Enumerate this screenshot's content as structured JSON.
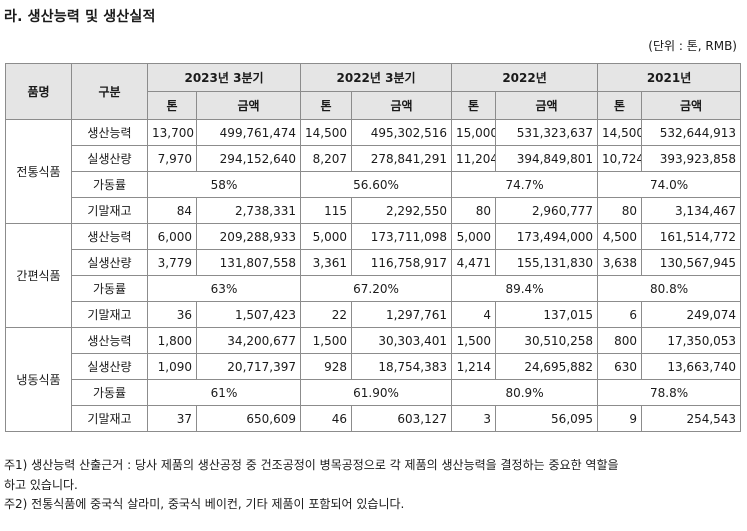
{
  "title": "라. 생산능력 및 생산실적",
  "unit": "(단위 : 톤, RMB)",
  "headers": {
    "product": "품명",
    "division": "구분",
    "periods": [
      "2023년 3분기",
      "2022년 3분기",
      "2022년",
      "2021년"
    ],
    "ton": "톤",
    "amount": "금액"
  },
  "categories": [
    {
      "name": "전통식품",
      "rows": [
        {
          "label": "생산능력",
          "values": [
            "13,700",
            "499,761,474",
            "14,500",
            "495,302,516",
            "15,000",
            "531,323,637",
            "14,500",
            "532,644,913"
          ]
        },
        {
          "label": "실생산량",
          "values": [
            "7,970",
            "294,152,640",
            "8,207",
            "278,841,291",
            "11,204",
            "394,849,801",
            "10,724",
            "393,923,858"
          ]
        },
        {
          "label": "가동률",
          "util": [
            "58%",
            "56.60%",
            "74.7%",
            "74.0%"
          ]
        },
        {
          "label": "기말재고",
          "values": [
            "84",
            "2,738,331",
            "115",
            "2,292,550",
            "80",
            "2,960,777",
            "80",
            "3,134,467"
          ]
        }
      ]
    },
    {
      "name": "간편식품",
      "rows": [
        {
          "label": "생산능력",
          "values": [
            "6,000",
            "209,288,933",
            "5,000",
            "173,711,098",
            "5,000",
            "173,494,000",
            "4,500",
            "161,514,772"
          ]
        },
        {
          "label": "실생산량",
          "values": [
            "3,779",
            "131,807,558",
            "3,361",
            "116,758,917",
            "4,471",
            "155,131,830",
            "3,638",
            "130,567,945"
          ]
        },
        {
          "label": "가동률",
          "util": [
            "63%",
            "67.20%",
            "89.4%",
            "80.8%"
          ]
        },
        {
          "label": "기말재고",
          "values": [
            "36",
            "1,507,423",
            "22",
            "1,297,761",
            "4",
            "137,015",
            "6",
            "249,074"
          ]
        }
      ]
    },
    {
      "name": "냉동식품",
      "rows": [
        {
          "label": "생산능력",
          "values": [
            "1,800",
            "34,200,677",
            "1,500",
            "30,303,401",
            "1,500",
            "30,510,258",
            "800",
            "17,350,053"
          ]
        },
        {
          "label": "실생산량",
          "values": [
            "1,090",
            "20,717,397",
            "928",
            "18,754,383",
            "1,214",
            "24,695,882",
            "630",
            "13,663,740"
          ]
        },
        {
          "label": "가동률",
          "util": [
            "61%",
            "61.90%",
            "80.9%",
            "78.8%"
          ]
        },
        {
          "label": "기말재고",
          "values": [
            "37",
            "650,609",
            "46",
            "603,127",
            "3",
            "56,095",
            "9",
            "254,543"
          ]
        }
      ]
    }
  ],
  "notes": [
    "주1) 생산능력 산출근거 : 당사 제품의 생산공정 중 건조공정이 병목공정으로 각 제품의 생산능력을 결정하는 중요한 역할을",
    "하고 있습니다.",
    "주2) 전통식품에 중국식 살라미, 중국식 베이컨, 기타 제품이 포함되어 있습니다."
  ]
}
